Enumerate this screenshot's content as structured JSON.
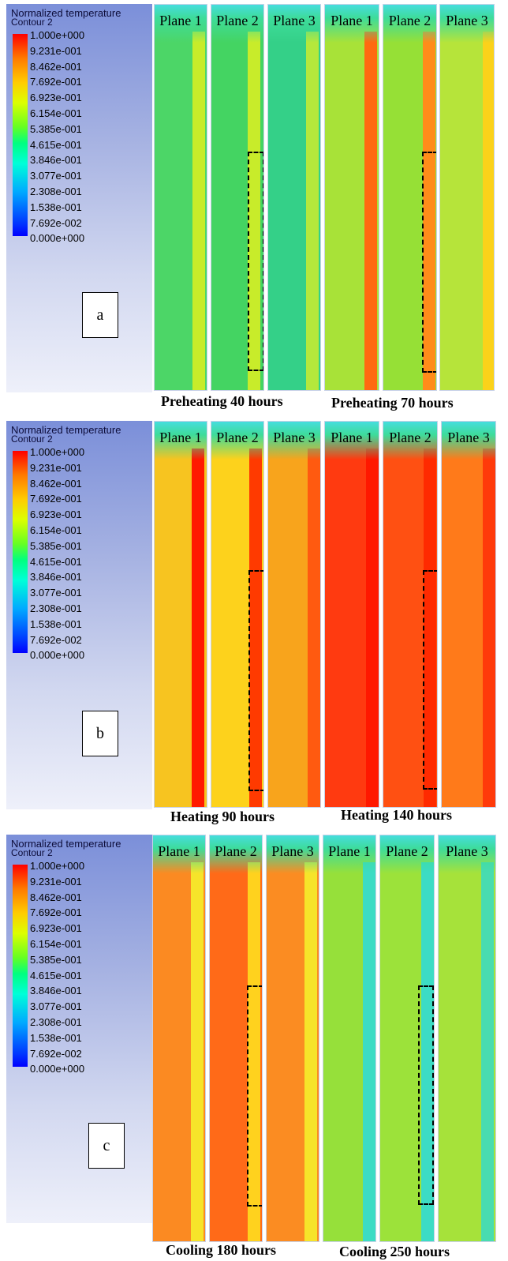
{
  "legend": {
    "title": "Normalized temperature",
    "subtitle": "Contour 2",
    "ticks": [
      "1.000e+000",
      "9.231e-001",
      "8.462e-001",
      "7.692e-001",
      "6.923e-001",
      "6.154e-001",
      "5.385e-001",
      "4.615e-001",
      "3.846e-001",
      "3.077e-001",
      "2.308e-001",
      "1.538e-001",
      "7.692e-002",
      "0.000e+000"
    ]
  },
  "rows": [
    {
      "tag": "a",
      "captions": [
        "Preheating 40 hours",
        "Preheating 70 hours"
      ],
      "panels": [
        {
          "label": "Plane 1",
          "color": "#4cd667",
          "strip": "#c8ec2a"
        },
        {
          "label": "Plane 2",
          "color": "#44d462",
          "strip": "#c8ec2a"
        },
        {
          "label": "Plane 3",
          "color": "#34d088",
          "strip": "#b4e83c"
        },
        {
          "label": "Plane 1",
          "color": "#a8e238",
          "strip": "#ff6a10"
        },
        {
          "label": "Plane 2",
          "color": "#96e036",
          "strip": "#ff8c1a"
        },
        {
          "label": "Plane 3",
          "color": "#b6e43a",
          "strip": "#fbd21a"
        }
      ]
    },
    {
      "tag": "b",
      "captions": [
        "Heating 90 hours",
        "Heating 140 hours"
      ],
      "panels": [
        {
          "label": "Plane 1",
          "color": "#f7c420",
          "strip": "#ff1a00"
        },
        {
          "label": "Plane 2",
          "color": "#fdd21c",
          "strip": "#ff3a00"
        },
        {
          "label": "Plane 3",
          "color": "#f8a41c",
          "strip": "#ff5a10"
        },
        {
          "label": "Plane 1",
          "color": "#ff3a10",
          "strip": "#ff1800"
        },
        {
          "label": "Plane 2",
          "color": "#ff5012",
          "strip": "#ff2a00"
        },
        {
          "label": "Plane 3",
          "color": "#ff7a1a",
          "strip": "#ff3a0a"
        }
      ]
    },
    {
      "tag": "c",
      "captions": [
        "Cooling 180 hours",
        "Cooling 250 hours"
      ],
      "panels": [
        {
          "label": "Plane 1",
          "color": "#fb8a22",
          "strip": "#f6e42a"
        },
        {
          "label": "Plane 2",
          "color": "#ff6a18",
          "strip": "#ffd21e"
        },
        {
          "label": "Plane 3",
          "color": "#fb8c22",
          "strip": "#f6e42a"
        },
        {
          "label": "Plane 1",
          "color": "#96e03a",
          "strip": "#3cdcc4"
        },
        {
          "label": "Plane 2",
          "color": "#9ce23a",
          "strip": "#3cdcc4"
        },
        {
          "label": "Plane 3",
          "color": "#a6e23a",
          "strip": "#48dcb0"
        }
      ]
    }
  ]
}
